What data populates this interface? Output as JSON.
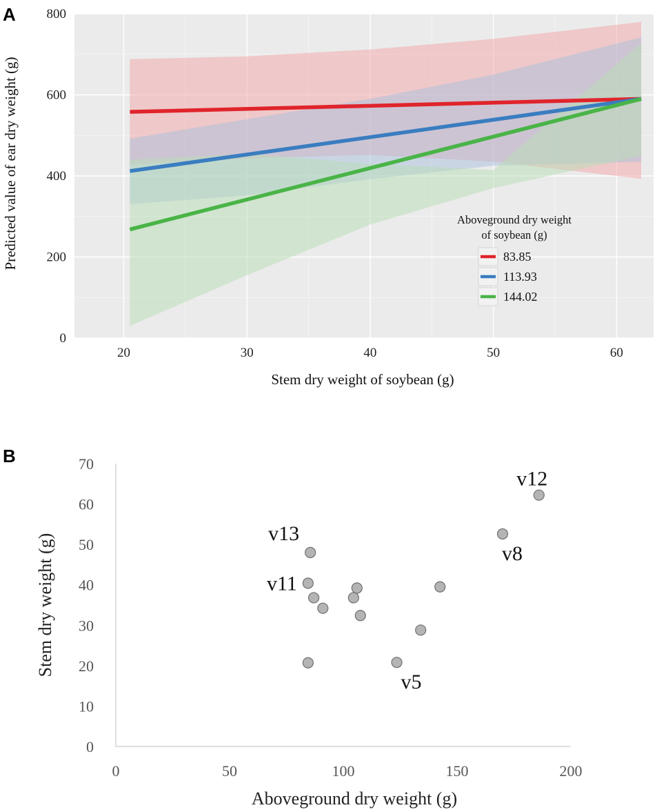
{
  "chart_data": [
    {
      "panel": "A",
      "type": "line",
      "title": "",
      "xlabel": "Stem dry weight of soybean (g)",
      "ylabel": "Predicted value of ear dry weight (g)",
      "xlim": [
        16,
        63
      ],
      "ylim": [
        0,
        800
      ],
      "xticks": [
        20,
        30,
        40,
        50,
        60
      ],
      "yticks": [
        0,
        200,
        400,
        600,
        800
      ],
      "grid": true,
      "legend": {
        "title_line1": "Aboveground dry weight",
        "title_line2": "of soybean (g)",
        "position": "bottom-right"
      },
      "series": [
        {
          "name": "83.85",
          "color": "#e0242b",
          "band_color": "#f4a6a8",
          "x": [
            20.5,
            62
          ],
          "values": [
            558,
            590
          ],
          "band_x": [
            20.5,
            30,
            40,
            50,
            62
          ],
          "band_upper": [
            688,
            695,
            712,
            738,
            780
          ],
          "band_lower": [
            428,
            443,
            452,
            435,
            393
          ]
        },
        {
          "name": "113.93",
          "color": "#3a7dc0",
          "band_color": "#a9c0dd",
          "x": [
            20.5,
            62
          ],
          "values": [
            412,
            590
          ],
          "band_x": [
            20.5,
            30,
            40,
            50,
            62
          ],
          "band_upper": [
            492,
            540,
            590,
            650,
            742
          ],
          "band_lower": [
            330,
            352,
            392,
            425,
            435
          ]
        },
        {
          "name": "144.02",
          "color": "#49b447",
          "band_color": "#b8ddb5",
          "x": [
            20.5,
            62
          ],
          "values": [
            268,
            590
          ],
          "band_x": [
            20.5,
            30,
            40,
            50,
            62
          ],
          "band_upper": [
            440,
            455,
            430,
            415,
            728
          ],
          "band_lower": [
            30,
            155,
            280,
            370,
            450
          ]
        }
      ]
    },
    {
      "panel": "B",
      "type": "scatter",
      "title": "",
      "xlabel": "Aboveground dry weight (g)",
      "ylabel": "Stem dry weight (g)",
      "xlim": [
        0,
        200
      ],
      "ylim": [
        0,
        70
      ],
      "xticks": [
        0,
        50,
        100,
        150,
        200
      ],
      "yticks": [
        0,
        10,
        20,
        30,
        40,
        50,
        60,
        70
      ],
      "grid": false,
      "point_color": "#b4b4b4",
      "points": [
        {
          "x": 84.5,
          "y": 20.7,
          "label": ""
        },
        {
          "x": 84.5,
          "y": 40.4,
          "label": "v11",
          "label_pos": "left"
        },
        {
          "x": 85.5,
          "y": 48.0,
          "label": "v13",
          "label_pos": "above-left"
        },
        {
          "x": 87.0,
          "y": 36.8,
          "label": ""
        },
        {
          "x": 91.0,
          "y": 34.2,
          "label": ""
        },
        {
          "x": 104.5,
          "y": 36.8,
          "label": ""
        },
        {
          "x": 106.0,
          "y": 39.2,
          "label": ""
        },
        {
          "x": 107.5,
          "y": 32.4,
          "label": ""
        },
        {
          "x": 123.5,
          "y": 20.8,
          "label": "v5",
          "label_pos": "below-right"
        },
        {
          "x": 134.0,
          "y": 28.8,
          "label": ""
        },
        {
          "x": 142.5,
          "y": 39.5,
          "label": ""
        },
        {
          "x": 170.0,
          "y": 52.6,
          "label": "v8",
          "label_pos": "below"
        },
        {
          "x": 186.0,
          "y": 62.2,
          "label": "v12",
          "label_pos": "above"
        }
      ]
    }
  ],
  "panel_labels": {
    "a": "A",
    "b": "B"
  }
}
